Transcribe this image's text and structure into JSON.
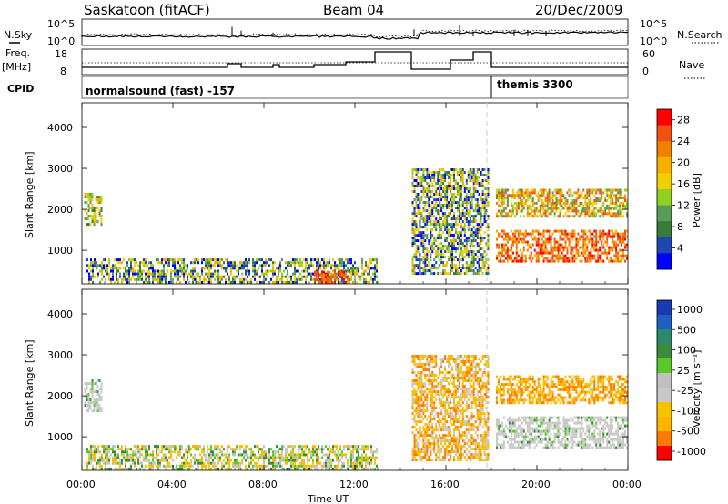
{
  "header": {
    "station": "Saskatoon (fitACF)",
    "beam": "Beam 04",
    "date": "20/Dec/2009"
  },
  "side_labels": {
    "nsky": "N.Sky",
    "freq_top": "Freq.",
    "freq_unit": "[MHz]",
    "cpid": "CPID",
    "nsearch": "N.Search",
    "nave": "Nave"
  },
  "cpid_labels": {
    "left": "normalsound (fast) -157",
    "right": "themis 3300"
  },
  "noise_axis": {
    "top": "10^5",
    "bottom": "10^0"
  },
  "freq_axis": {
    "top": "18",
    "bottom": "8"
  },
  "nave_axis": {
    "top": "60",
    "bottom": "0"
  },
  "colors": {
    "power_scale": [
      "#0000ff",
      "#1f47b4",
      "#3a7a3a",
      "#5a9a5a",
      "#90d020",
      "#f0d000",
      "#f8b000",
      "#f08000",
      "#f05010",
      "#ff0000"
    ],
    "velocity_scale": [
      "#ff0000",
      "#ff7a00",
      "#ffb400",
      "#f7c200",
      "#c8c8c8",
      "#c0c0c0",
      "#59c92a",
      "#3a8c3a",
      "#2a8a6a",
      "#1f5fc0",
      "#1a3ab4"
    ],
    "ground_scatter": "#c8c8c8"
  },
  "chart_data": [
    {
      "type": "heatmap",
      "title": "Power",
      "xlabel": "Time UT",
      "ylabel": "Slant Range [km]",
      "x_ticks": [
        "00:00",
        "04:00",
        "08:00",
        "12:00",
        "16:00",
        "20:00",
        "00:00"
      ],
      "y_ticks": [
        1000,
        2000,
        3000,
        4000
      ],
      "xlim_hours": [
        0,
        24
      ],
      "ylim_km": [
        180,
        4600
      ],
      "colorbar": {
        "label": "Power [dB]",
        "ticks": [
          4,
          8,
          12,
          16,
          20,
          24,
          28
        ],
        "range": [
          0,
          30
        ]
      },
      "scatter_regions": [
        {
          "t0": 0.1,
          "t1": 0.9,
          "r0": 1600,
          "r1": 2400,
          "value": "10-20 dB"
        },
        {
          "t0": 0.2,
          "t1": 13.0,
          "r0": 180,
          "r1": 800,
          "value": "4-20 dB"
        },
        {
          "t0": 10.2,
          "t1": 11.8,
          "r0": 180,
          "r1": 500,
          "value": "24-30 dB"
        },
        {
          "t0": 14.5,
          "t1": 17.9,
          "r0": 400,
          "r1": 3000,
          "value": "4-24 dB"
        },
        {
          "t0": 18.2,
          "t1": 24.0,
          "r0": 700,
          "r1": 1500,
          "value": "20-30 dB"
        },
        {
          "t0": 18.2,
          "t1": 24.0,
          "r0": 1800,
          "r1": 2500,
          "value": "10-24 dB"
        }
      ]
    },
    {
      "type": "heatmap",
      "title": "Velocity",
      "xlabel": "Time UT",
      "ylabel": "Slant Range [km]",
      "x_ticks": [
        "00:00",
        "04:00",
        "08:00",
        "12:00",
        "16:00",
        "20:00",
        "00:00"
      ],
      "y_ticks": [
        1000,
        2000,
        3000,
        4000
      ],
      "xlim_hours": [
        0,
        24
      ],
      "ylim_km": [
        180,
        4600
      ],
      "colorbar": {
        "label": "Velocity [m s⁻¹]",
        "ticks": [
          1000,
          500,
          100,
          25,
          -25,
          -100,
          -500,
          -1000
        ]
      },
      "scatter_regions": [
        {
          "t0": 0.1,
          "t1": 0.9,
          "r0": 1600,
          "r1": 2400,
          "value": "ground scatter"
        },
        {
          "t0": 0.2,
          "t1": 13.0,
          "r0": 180,
          "r1": 800,
          "value": "-100 to 100 m/s"
        },
        {
          "t0": 14.5,
          "t1": 17.9,
          "r0": 400,
          "r1": 3000,
          "value": "-500 to 25 m/s"
        },
        {
          "t0": 18.2,
          "t1": 24.0,
          "r0": 700,
          "r1": 1500,
          "value": "ground scatter"
        },
        {
          "t0": 18.2,
          "t1": 24.0,
          "r0": 1800,
          "r1": 2500,
          "value": "-100 to -500 m/s"
        }
      ]
    }
  ]
}
